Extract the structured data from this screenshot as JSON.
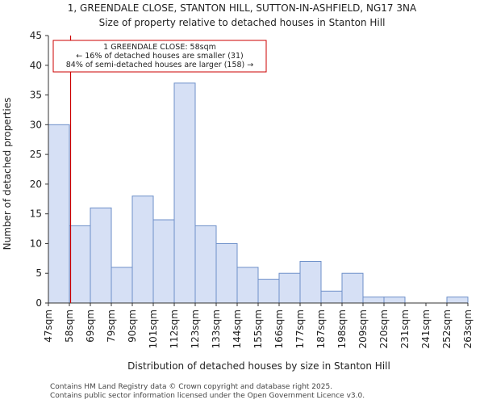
{
  "chart_data": {
    "type": "bar",
    "title_line1": "1, GREENDALE CLOSE, STANTON HILL, SUTTON-IN-ASHFIELD, NG17 3NA",
    "title_line2": "Size of property relative to detached houses in Stanton Hill",
    "xlabel": "Distribution of detached houses by size in Stanton Hill",
    "ylabel": "Number of detached properties",
    "ylim": [
      0,
      45
    ],
    "yticks": [
      0,
      5,
      10,
      15,
      20,
      25,
      30,
      35,
      40,
      45
    ],
    "bin_edges_label": [
      "47sqm",
      "58sqm",
      "69sqm",
      "79sqm",
      "90sqm",
      "101sqm",
      "112sqm",
      "123sqm",
      "133sqm",
      "144sqm",
      "155sqm",
      "166sqm",
      "177sqm",
      "187sqm",
      "198sqm",
      "209sqm",
      "220sqm",
      "231sqm",
      "241sqm",
      "252sqm",
      "263sqm"
    ],
    "values": [
      30,
      13,
      16,
      6,
      18,
      14,
      37,
      13,
      10,
      6,
      4,
      5,
      7,
      2,
      5,
      1,
      1,
      0,
      0,
      1
    ],
    "bar_color": "#d6e0f5",
    "bar_edge_color": "#6d8fc9",
    "marker": {
      "value_sqm": 58,
      "color": "#cc0000",
      "annotation_lines": [
        "1 GREENDALE CLOSE: 58sqm",
        "← 16% of detached houses are smaller (31)",
        "84% of semi-detached houses are larger (158) →"
      ]
    }
  },
  "footer": {
    "line1": "Contains HM Land Registry data © Crown copyright and database right 2025.",
    "line2": "Contains public sector information licensed under the Open Government Licence v3.0."
  }
}
